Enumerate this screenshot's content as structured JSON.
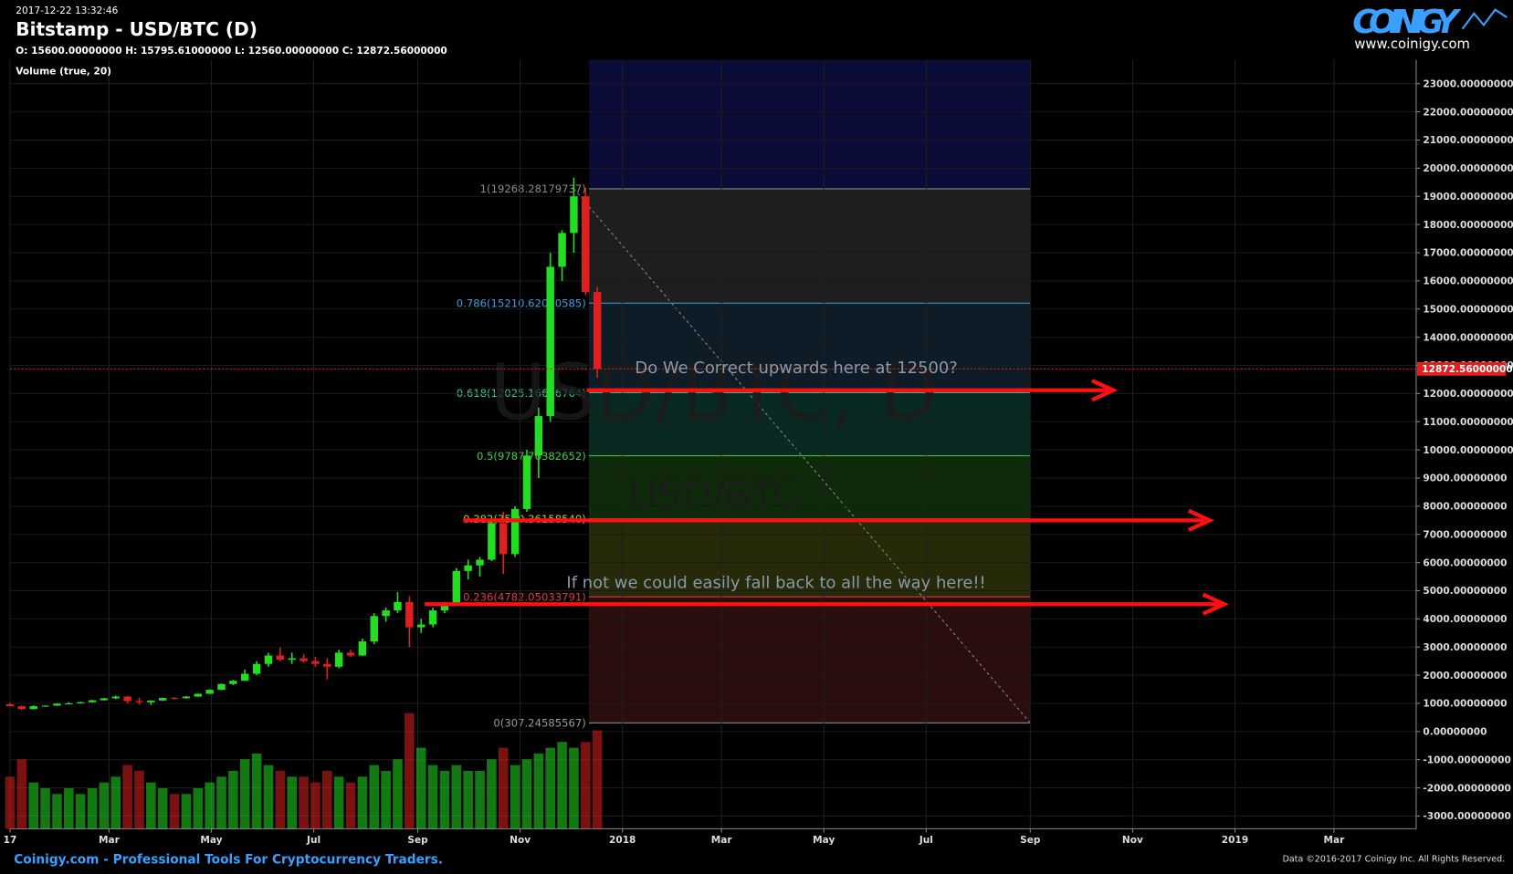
{
  "header": {
    "timestamp": "2017-12-22 13:32:46",
    "ohlc_text": "O: 15600.00000000 H: 15795.61000000 L: 12560.00000000 C: 12872.56000000",
    "volume_label": "Volume (true, 20)",
    "logo": "COINIGY",
    "logo_url": "www.coinigy.com"
  },
  "footer": {
    "left": "Coinigy.com - Professional Tools For Cryptocurrency Traders.",
    "right": "Data ©2016-2017 Coinigy Inc. All Rights Reserved."
  },
  "chart_data": {
    "type": "candlestick",
    "title": "Bitstamp - USD/BTC (D)",
    "watermark": "USD/BTC, D",
    "watermark_sub": "USD/BTC",
    "up_color": "#22dd22",
    "down_color": "#e02020",
    "x": [
      0,
      7,
      14,
      21,
      28,
      35,
      42,
      49,
      56,
      63,
      70,
      77,
      84,
      91,
      98,
      105,
      112,
      119,
      126,
      133,
      140,
      147,
      154,
      161,
      168,
      175,
      182,
      189,
      196,
      203,
      210,
      217,
      224,
      231,
      238,
      245,
      252,
      259,
      266,
      273,
      280,
      287,
      294,
      301,
      308,
      315,
      322,
      329,
      336,
      343,
      350
    ],
    "open": [
      970,
      900,
      800,
      900,
      920,
      990,
      1000,
      1040,
      1110,
      1180,
      1240,
      1080,
      1040,
      1100,
      1190,
      1180,
      1240,
      1340,
      1480,
      1690,
      1800,
      2050,
      2400,
      2700,
      2550,
      2600,
      2500,
      2400,
      2300,
      2800,
      2700,
      3200,
      4100,
      4300,
      4600,
      3700,
      3800,
      4300,
      4500,
      5700,
      5900,
      6100,
      7400,
      6300,
      7900,
      9800,
      11200,
      16500,
      17700,
      19000,
      15600
    ],
    "high": [
      1020,
      920,
      930,
      930,
      1000,
      1040,
      1060,
      1120,
      1190,
      1270,
      1260,
      1200,
      1110,
      1200,
      1220,
      1260,
      1350,
      1500,
      1700,
      1830,
      2200,
      2500,
      2800,
      2980,
      2800,
      2750,
      2650,
      2600,
      2900,
      2900,
      3300,
      4200,
      4400,
      4950,
      4800,
      4000,
      4400,
      4600,
      5800,
      6100,
      6200,
      7500,
      7800,
      8000,
      10000,
      11500,
      17000,
      17800,
      19666,
      19300,
      15795.61
    ],
    "low": [
      900,
      760,
      780,
      880,
      910,
      960,
      990,
      1030,
      1100,
      1150,
      1000,
      950,
      940,
      1080,
      1140,
      1170,
      1230,
      1330,
      1470,
      1650,
      1800,
      2000,
      2300,
      2500,
      2400,
      2450,
      2300,
      1850,
      2250,
      2650,
      2680,
      3100,
      3900,
      4200,
      3000,
      3500,
      3700,
      4200,
      4500,
      5400,
      5500,
      6050,
      5600,
      6200,
      7800,
      9000,
      11000,
      16000,
      17000,
      15500,
      12560
    ],
    "close": [
      900,
      800,
      900,
      920,
      990,
      1000,
      1040,
      1110,
      1180,
      1240,
      1080,
      1040,
      1100,
      1190,
      1180,
      1240,
      1340,
      1480,
      1690,
      1800,
      2050,
      2400,
      2700,
      2550,
      2600,
      2500,
      2400,
      2300,
      2800,
      2700,
      3200,
      4100,
      4300,
      4600,
      3700,
      3800,
      4300,
      4500,
      5700,
      5900,
      6100,
      7400,
      6300,
      7900,
      9800,
      11200,
      16500,
      17700,
      19000,
      15600,
      12872.56
    ],
    "volume": [
      45,
      60,
      40,
      35,
      30,
      35,
      30,
      35,
      40,
      45,
      55,
      50,
      40,
      35,
      30,
      30,
      35,
      40,
      45,
      50,
      60,
      65,
      55,
      50,
      45,
      45,
      40,
      50,
      45,
      40,
      45,
      55,
      50,
      60,
      100,
      70,
      55,
      50,
      55,
      50,
      50,
      60,
      70,
      55,
      60,
      65,
      70,
      75,
      70,
      75,
      85
    ],
    "xlim": [
      0,
      838
    ],
    "xticks": [
      {
        "value": 0,
        "label": "17"
      },
      {
        "value": 59,
        "label": "Mar"
      },
      {
        "value": 120,
        "label": "May"
      },
      {
        "value": 181,
        "label": "Jul"
      },
      {
        "value": 243,
        "label": "Sep"
      },
      {
        "value": 304,
        "label": "Nov"
      },
      {
        "value": 365,
        "label": "2018"
      },
      {
        "value": 424,
        "label": "Mar"
      },
      {
        "value": 485,
        "label": "May"
      },
      {
        "value": 546,
        "label": "Jul"
      },
      {
        "value": 608,
        "label": "Sep"
      },
      {
        "value": 669,
        "label": "Nov"
      },
      {
        "value": 730,
        "label": "2019"
      },
      {
        "value": 789,
        "label": "Mar"
      }
    ],
    "ylim": [
      -3450,
      23850
    ],
    "yticks": [
      {
        "value": -3000,
        "label": "-3000.00000000"
      },
      {
        "value": -2000,
        "label": "-2000.00000000"
      },
      {
        "value": -1000,
        "label": "-1000.00000000"
      },
      {
        "value": 0,
        "label": "0.00000000"
      },
      {
        "value": 1000,
        "label": "1000.00000000"
      },
      {
        "value": 2000,
        "label": "2000.00000000"
      },
      {
        "value": 3000,
        "label": "3000.00000000"
      },
      {
        "value": 4000,
        "label": "4000.00000000"
      },
      {
        "value": 5000,
        "label": "5000.00000000"
      },
      {
        "value": 6000,
        "label": "6000.00000000"
      },
      {
        "value": 7000,
        "label": "7000.00000000"
      },
      {
        "value": 8000,
        "label": "8000.00000000"
      },
      {
        "value": 9000,
        "label": "9000.00000000"
      },
      {
        "value": 10000,
        "label": "10000.00000000"
      },
      {
        "value": 11000,
        "label": "11000.00000000"
      },
      {
        "value": 12000,
        "label": "12000.00000000"
      },
      {
        "value": 13000,
        "label": "13000.00000000"
      },
      {
        "value": 14000,
        "label": "14000.00000000"
      },
      {
        "value": 15000,
        "label": "15000.00000000"
      },
      {
        "value": 16000,
        "label": "16000.00000000"
      },
      {
        "value": 17000,
        "label": "17000.00000000"
      },
      {
        "value": 18000,
        "label": "18000.00000000"
      },
      {
        "value": 19000,
        "label": "19000.00000000"
      },
      {
        "value": 20000,
        "label": "20000.00000000"
      },
      {
        "value": 21000,
        "label": "21000.00000000"
      },
      {
        "value": 22000,
        "label": "22000.00000000"
      },
      {
        "value": 23000,
        "label": "23000.00000000"
      }
    ],
    "grid": true,
    "last_price": {
      "value": 12872.56,
      "label": "12872.56000000"
    },
    "fib": {
      "x": [
        345,
        608
      ],
      "top_color": "#0b0b38",
      "levels": [
        {
          "value": 19268.28179737,
          "label": "1(19268.28179737)",
          "color": "#8a8a8a",
          "band": "#1e1e1e"
        },
        {
          "value": 15210.62010585,
          "label": "0.786(15210.62010585)",
          "color": "#3aa0e0",
          "band": "#0d1c26"
        },
        {
          "value": 12025.16606764,
          "label": "0.618(12025.16606764)",
          "color": "#2ad0a0",
          "band": "#082a22"
        },
        {
          "value": 9787.76382652,
          "label": "0.5(9787.76382652)",
          "color": "#40d040",
          "band": "#0e2a0a"
        },
        {
          "value": 7550.3615854,
          "label": "0.382(7550.36158540)",
          "color": "#b8d020",
          "band": "#262a08"
        },
        {
          "value": 4782.05033791,
          "label": "0.236(4782.05033791)",
          "color": "#e03a3a",
          "band": "#2a0e0e"
        },
        {
          "value": 307.24585567,
          "label": "0(307.24585567)",
          "color": "#9a9a9a",
          "band": null
        }
      ]
    },
    "annotations": [
      "Do We Correct upwards here at 12500?",
      "If not we could easily fall back to all the way here!!"
    ]
  }
}
